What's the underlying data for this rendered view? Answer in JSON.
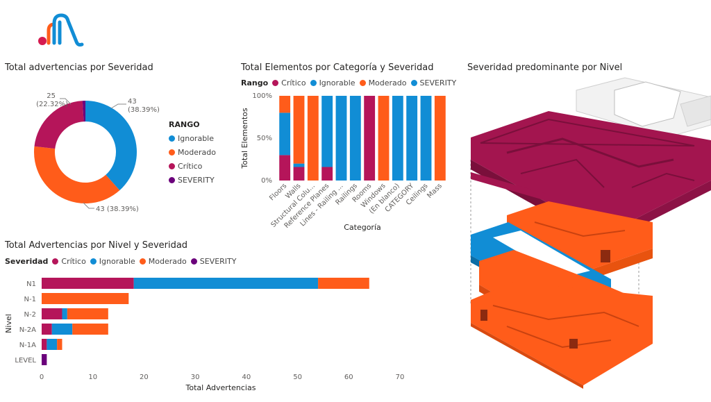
{
  "colors": {
    "critico": "#B5155A",
    "ignorable": "#118DD5",
    "moderado": "#FF5C1A",
    "severity": "#6B007B"
  },
  "titles": {
    "donut": "Total advertencias por Severidad",
    "stack": "Total Elementos por Categoría y Severidad",
    "level3d": "Severidad predominante por Nivel",
    "hbar": "Total Advertencias por Nivel y Severidad"
  },
  "legends": {
    "donut": {
      "title": "RANGO",
      "items": [
        {
          "label": "Ignorable",
          "color": "#118DD5"
        },
        {
          "label": "Moderado",
          "color": "#FF5C1A"
        },
        {
          "label": "Crítico",
          "color": "#B5155A"
        },
        {
          "label": "SEVERITY",
          "color": "#6B007B"
        }
      ]
    },
    "stack": {
      "title": "Rango",
      "items": [
        {
          "label": "Crítico",
          "color": "#B5155A"
        },
        {
          "label": "Ignorable",
          "color": "#118DD5"
        },
        {
          "label": "Moderado",
          "color": "#FF5C1A"
        },
        {
          "label": "SEVERITY",
          "color": "#118DD5"
        }
      ]
    },
    "hbar": {
      "title": "Severidad",
      "items": [
        {
          "label": "Crítico",
          "color": "#B5155A"
        },
        {
          "label": "Ignorable",
          "color": "#118DD5"
        },
        {
          "label": "Moderado",
          "color": "#FF5C1A"
        },
        {
          "label": "SEVERITY",
          "color": "#6B007B"
        }
      ]
    }
  },
  "chart_data": [
    {
      "type": "pie",
      "title": "Total advertencias por Severidad",
      "donut": true,
      "categories": [
        "Ignorable",
        "Moderado",
        "Crítico",
        "SEVERITY"
      ],
      "values": [
        43,
        43,
        25,
        1
      ],
      "data_labels": [
        "43\n(38.39%)",
        "43 (38.39%)",
        "25\n(22.32%)",
        ""
      ],
      "legend_title": "RANGO",
      "legend_position": "right"
    },
    {
      "type": "bar",
      "orientation": "vertical",
      "stacked": "100%",
      "title": "Total Elementos por Categoría y Severidad",
      "xlabel": "Categoría",
      "ylabel": "Total Elementos",
      "yticks": [
        "0%",
        "50%",
        "100%"
      ],
      "ylim": [
        0,
        100
      ],
      "categories": [
        "Floors",
        "Walls",
        "Structural Colu...",
        "Reference Planes",
        "Lines - Railing ...",
        "Railings",
        "Rooms",
        "Windows",
        "(En blanco)",
        "CATEGORY",
        "Ceilings",
        "Mass"
      ],
      "series": [
        {
          "name": "Crítico",
          "values": [
            30,
            16,
            0,
            16,
            0,
            0,
            100,
            0,
            0,
            0,
            0,
            0
          ]
        },
        {
          "name": "Ignorable",
          "values": [
            50,
            4,
            0,
            84,
            100,
            100,
            0,
            0,
            100,
            100,
            100,
            0
          ]
        },
        {
          "name": "Moderado",
          "values": [
            20,
            80,
            100,
            0,
            0,
            0,
            0,
            100,
            0,
            0,
            0,
            100
          ]
        }
      ],
      "legend_title": "Rango",
      "legend_position": "top"
    },
    {
      "type": "bar",
      "orientation": "horizontal",
      "stacked": true,
      "title": "Total Advertencias por Nivel y Severidad",
      "xlabel": "Total Advertencias",
      "ylabel": "Nivel",
      "xlim": [
        0,
        70
      ],
      "xticks": [
        0,
        10,
        20,
        30,
        40,
        50,
        60,
        70
      ],
      "categories": [
        "N1",
        "N-1",
        "N-2",
        "N-2A",
        "N-1A",
        "LEVEL"
      ],
      "series": [
        {
          "name": "Crítico",
          "values": [
            18,
            0,
            4,
            2,
            1,
            0
          ]
        },
        {
          "name": "Ignorable",
          "values": [
            36,
            0,
            1,
            4,
            2,
            0
          ]
        },
        {
          "name": "Moderado",
          "values": [
            10,
            17,
            8,
            7,
            1,
            0
          ]
        },
        {
          "name": "SEVERITY",
          "values": [
            0,
            0,
            0,
            0,
            0,
            1
          ]
        }
      ],
      "legend_title": "Severidad",
      "legend_position": "top"
    }
  ]
}
